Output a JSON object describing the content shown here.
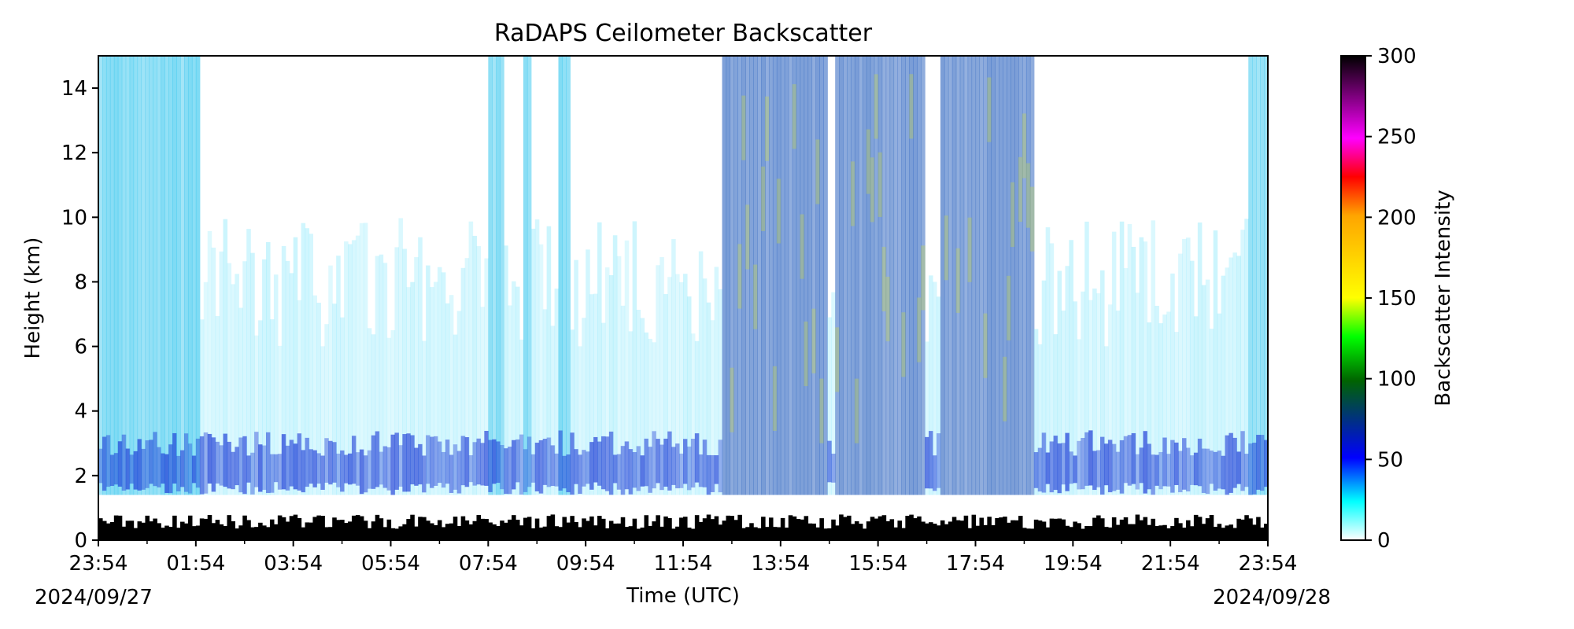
{
  "chart_data": {
    "type": "heatmap",
    "title": "RaDAPS Ceilometer Backscatter",
    "xlabel": "Time (UTC)",
    "ylabel": "Height (km)",
    "ylim": [
      0,
      15
    ],
    "yticks": [
      0,
      2,
      4,
      6,
      8,
      10,
      12,
      14
    ],
    "xtick_labels": [
      "23:54",
      "01:54",
      "03:54",
      "05:54",
      "07:54",
      "09:54",
      "11:54",
      "13:54",
      "15:54",
      "17:54",
      "19:54",
      "21:54",
      "23:54"
    ],
    "start_date": "2024/09/27",
    "end_date": "2024/09/28",
    "colorbar": {
      "label": "Backscatter Intensity",
      "range": [
        0,
        300
      ],
      "ticks": [
        0,
        50,
        100,
        150,
        200,
        250,
        300
      ]
    },
    "colors": {
      "cyan": "#00e5ff",
      "blue": "#1d3bd6",
      "ground": "#000000"
    }
  }
}
